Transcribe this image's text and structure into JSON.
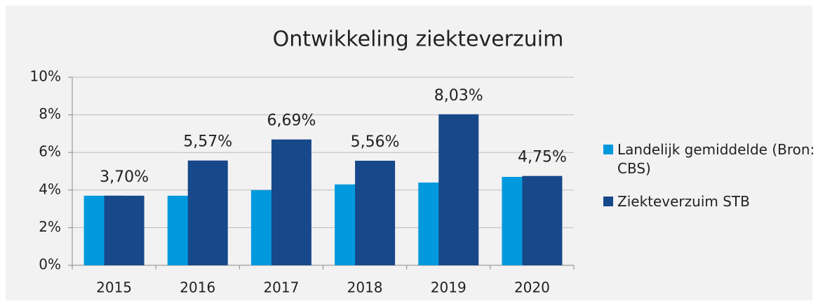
{
  "chart_data": {
    "type": "bar",
    "title": "Ontwikkeling ziekteverzuim",
    "categories": [
      "2015",
      "2016",
      "2017",
      "2018",
      "2019",
      "2020"
    ],
    "series": [
      {
        "name": "Landelijk gemiddelde (Bron: CBS)",
        "color": "#0099dd",
        "values": [
          3.7,
          3.7,
          4.0,
          4.3,
          4.4,
          4.7
        ]
      },
      {
        "name": "Ziekteverzuim STB",
        "color": "#17488a",
        "values": [
          3.7,
          5.57,
          6.69,
          5.56,
          8.03,
          4.75
        ],
        "value_labels": [
          "3,70%",
          "5,57%",
          "6,69%",
          "5,56%",
          "8,03%",
          "4,75%"
        ]
      }
    ],
    "ylim": [
      0,
      10
    ],
    "yticks": [
      {
        "value": 0,
        "label": "0%"
      },
      {
        "value": 2,
        "label": "2%"
      },
      {
        "value": 4,
        "label": "4%"
      },
      {
        "value": 6,
        "label": "6%"
      },
      {
        "value": 8,
        "label": "8%"
      },
      {
        "value": 10,
        "label": "10%"
      }
    ],
    "grid": true,
    "legend": "right"
  }
}
